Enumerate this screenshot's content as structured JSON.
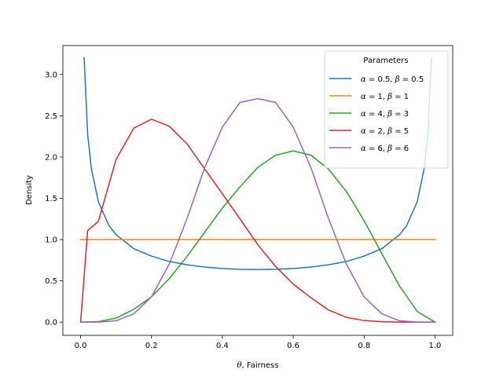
{
  "chart_data": {
    "type": "line",
    "title": "",
    "xlabel": "θ, Fairness",
    "xlabel_var": "θ",
    "xlabel_rest": ", Fairness",
    "ylabel": "Density",
    "xlim": [
      -0.05,
      1.05
    ],
    "ylim": [
      -0.16,
      3.35
    ],
    "xticks": [
      0.0,
      0.2,
      0.4,
      0.6,
      0.8,
      1.0
    ],
    "xtick_labels": [
      "0.0",
      "0.2",
      "0.4",
      "0.6",
      "0.8",
      "1.0"
    ],
    "yticks": [
      0.0,
      0.5,
      1.0,
      1.5,
      2.0,
      2.5,
      3.0
    ],
    "ytick_labels": [
      "0.0",
      "0.5",
      "1.0",
      "1.5",
      "2.0",
      "2.5",
      "3.0"
    ],
    "grid": false,
    "legend": {
      "title": "Parameters",
      "placement": "top-right"
    },
    "series": [
      {
        "name": "α = 0.5, β = 0.5",
        "alpha": "0.5",
        "beta": "0.5",
        "color": "#1f77b4",
        "x": [
          0.01,
          0.02,
          0.03,
          0.05,
          0.08,
          0.1,
          0.15,
          0.2,
          0.25,
          0.3,
          0.35,
          0.4,
          0.45,
          0.5,
          0.55,
          0.6,
          0.65,
          0.7,
          0.75,
          0.8,
          0.85,
          0.9,
          0.92,
          0.95,
          0.97,
          0.98,
          0.99
        ],
        "y": [
          3.2,
          2.27,
          1.87,
          1.46,
          1.17,
          1.06,
          0.89,
          0.8,
          0.735,
          0.695,
          0.667,
          0.65,
          0.64,
          0.637,
          0.64,
          0.65,
          0.667,
          0.695,
          0.735,
          0.8,
          0.89,
          1.06,
          1.17,
          1.46,
          1.87,
          2.27,
          3.2
        ]
      },
      {
        "name": "α = 1, β = 1",
        "alpha": "1",
        "beta": "1",
        "color": "#ff7f0e",
        "x": [
          0.0,
          1.0
        ],
        "y": [
          1.0,
          1.0
        ]
      },
      {
        "name": "α = 4, β = 3",
        "alpha": "4",
        "beta": "3",
        "color": "#2ca02c",
        "x": [
          0.0,
          0.05,
          0.1,
          0.15,
          0.2,
          0.25,
          0.3,
          0.35,
          0.4,
          0.45,
          0.5,
          0.55,
          0.6,
          0.65,
          0.7,
          0.75,
          0.8,
          0.85,
          0.9,
          0.95,
          1.0
        ],
        "y": [
          0.0,
          0.006,
          0.049,
          0.156,
          0.307,
          0.527,
          0.794,
          1.089,
          1.382,
          1.64,
          1.875,
          2.021,
          2.074,
          2.022,
          1.852,
          1.582,
          1.229,
          0.829,
          0.437,
          0.129,
          0.0
        ]
      },
      {
        "name": "α = 2, β = 5",
        "alpha": "2",
        "beta": "5",
        "color": "#d62728",
        "x": [
          0.0,
          0.02,
          0.05,
          0.1,
          0.15,
          0.2,
          0.25,
          0.3,
          0.35,
          0.4,
          0.45,
          0.5,
          0.55,
          0.6,
          0.65,
          0.7,
          0.75,
          0.8,
          0.85,
          0.9,
          0.95,
          1.0
        ],
        "y": [
          0.0,
          1.11,
          1.22,
          1.97,
          2.35,
          2.458,
          2.373,
          2.161,
          1.856,
          1.555,
          1.248,
          0.938,
          0.676,
          0.461,
          0.295,
          0.146,
          0.059,
          0.019,
          0.005,
          0.0006,
          0.0,
          0.0
        ]
      },
      {
        "name": "α = 6, β = 6",
        "alpha": "6",
        "beta": "6",
        "color": "#9467bd",
        "x": [
          0.0,
          0.05,
          0.1,
          0.15,
          0.2,
          0.25,
          0.3,
          0.35,
          0.4,
          0.45,
          0.5,
          0.55,
          0.6,
          0.65,
          0.7,
          0.75,
          0.8,
          0.85,
          0.9,
          0.95,
          1.0
        ],
        "y": [
          0.0,
          0.0,
          0.017,
          0.101,
          0.306,
          0.702,
          1.249,
          1.87,
          2.362,
          2.662,
          2.707,
          2.662,
          2.362,
          1.87,
          1.249,
          0.702,
          0.306,
          0.101,
          0.017,
          0.0,
          0.0
        ]
      }
    ]
  }
}
